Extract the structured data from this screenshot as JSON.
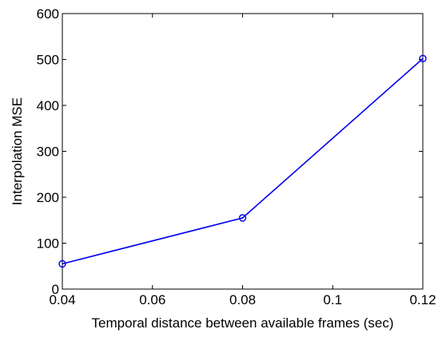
{
  "chart_data": {
    "type": "line",
    "xlabel": "Temporal distance between available frames (sec)",
    "ylabel": "Interpolation MSE",
    "xlim": [
      0.04,
      0.12
    ],
    "ylim": [
      0,
      600
    ],
    "x_ticks": [
      0.04,
      0.06,
      0.08,
      0.1,
      0.12
    ],
    "x_tick_labels": [
      "0.04",
      "0.06",
      "0.08",
      "0.1",
      "0.12"
    ],
    "y_ticks": [
      0,
      100,
      200,
      300,
      400,
      500,
      600
    ],
    "y_tick_labels": [
      "0",
      "100",
      "200",
      "300",
      "400",
      "500",
      "600"
    ],
    "grid": false,
    "series": [
      {
        "x": [
          0.04,
          0.08,
          0.12
        ],
        "values": [
          55,
          155,
          502
        ],
        "color": "#0000ee",
        "marker": "circle"
      }
    ]
  }
}
